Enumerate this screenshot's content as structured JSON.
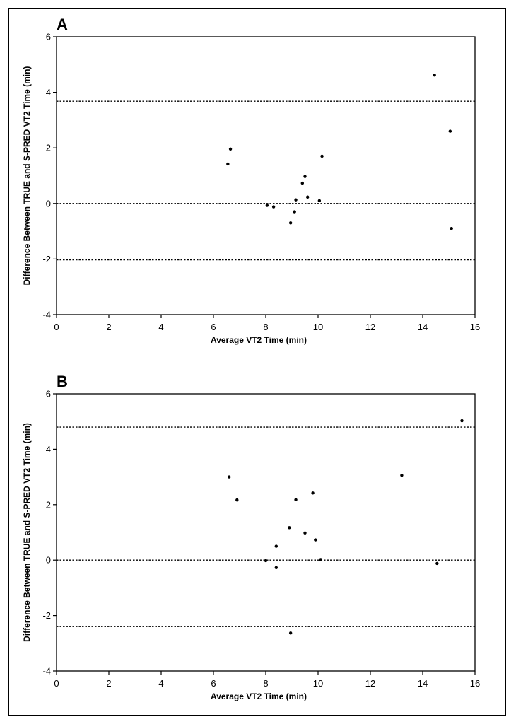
{
  "chart_data": [
    {
      "type": "scatter",
      "panel_label": "A",
      "xlabel": "Average VT2 Time (min)",
      "ylabel": "Difference Between TRUE and S-PRED VT2 Time (min)",
      "xlim": [
        0,
        16
      ],
      "ylim": [
        -4,
        6
      ],
      "xticks": [
        0,
        2,
        4,
        6,
        8,
        10,
        12,
        14,
        16
      ],
      "yticks": [
        -4,
        -2,
        0,
        2,
        4,
        6
      ],
      "grid": false,
      "reference_lines": [
        3.68,
        0.0,
        -2.03
      ],
      "points": [
        {
          "x": 6.55,
          "y": 1.42
        },
        {
          "x": 6.65,
          "y": 1.96
        },
        {
          "x": 8.05,
          "y": -0.07
        },
        {
          "x": 8.3,
          "y": -0.12
        },
        {
          "x": 8.95,
          "y": -0.7
        },
        {
          "x": 9.1,
          "y": -0.3
        },
        {
          "x": 9.15,
          "y": 0.13
        },
        {
          "x": 9.4,
          "y": 0.73
        },
        {
          "x": 9.5,
          "y": 0.97
        },
        {
          "x": 9.6,
          "y": 0.23
        },
        {
          "x": 10.05,
          "y": 0.1
        },
        {
          "x": 10.15,
          "y": 1.7
        },
        {
          "x": 14.45,
          "y": 4.62
        },
        {
          "x": 15.05,
          "y": 2.6
        },
        {
          "x": 15.1,
          "y": -0.9
        }
      ]
    },
    {
      "type": "scatter",
      "panel_label": "B",
      "xlabel": "Average VT2 Time (min)",
      "ylabel": "Difference Between TRUE and S-PRED VT2 Time (min)",
      "xlim": [
        0,
        16
      ],
      "ylim": [
        -4,
        6
      ],
      "xticks": [
        0,
        2,
        4,
        6,
        8,
        10,
        12,
        14,
        16
      ],
      "yticks": [
        -4,
        -2,
        0,
        2,
        4,
        6
      ],
      "grid": false,
      "reference_lines": [
        4.8,
        0.0,
        -2.4
      ],
      "points": [
        {
          "x": 6.6,
          "y": 3.0
        },
        {
          "x": 6.9,
          "y": 2.17
        },
        {
          "x": 8.0,
          "y": -0.02
        },
        {
          "x": 8.4,
          "y": 0.5
        },
        {
          "x": 8.4,
          "y": -0.27
        },
        {
          "x": 8.9,
          "y": 1.17
        },
        {
          "x": 8.95,
          "y": -2.63
        },
        {
          "x": 9.15,
          "y": 2.18
        },
        {
          "x": 9.5,
          "y": 0.98
        },
        {
          "x": 9.8,
          "y": 2.42
        },
        {
          "x": 9.9,
          "y": 0.73
        },
        {
          "x": 10.1,
          "y": 0.02
        },
        {
          "x": 13.2,
          "y": 3.06
        },
        {
          "x": 14.55,
          "y": -0.12
        },
        {
          "x": 15.5,
          "y": 5.03
        }
      ]
    }
  ]
}
